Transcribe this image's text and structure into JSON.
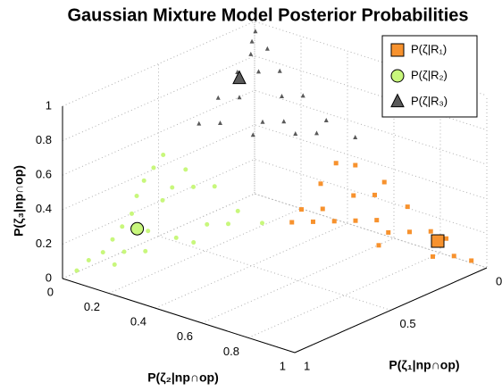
{
  "chart_data": {
    "type": "scatter3d",
    "title": "Gaussian Mixture Model Posterior Probabilities",
    "x_label": "P(ζ₁|np∩op)",
    "y_label": "P(ζ₂|np∩op)",
    "z_label": "P(ζ₃|np∩op)",
    "xlim": [
      0,
      1
    ],
    "ylim": [
      0,
      1
    ],
    "zlim": [
      0,
      1
    ],
    "xticks": [
      0,
      0.5,
      1
    ],
    "yticks": [
      0,
      0.2,
      0.4,
      0.6,
      0.8,
      1
    ],
    "zticks": [
      0,
      0.2,
      0.4,
      0.6,
      0.8,
      1
    ],
    "grid": true,
    "legend": "upper right",
    "series": [
      {
        "name": "P(ζ|R₁)",
        "color": "#f7922e",
        "marker": "square",
        "x": [
          0.02,
          0.05,
          0.1,
          0.05,
          0.1,
          0.15,
          0.05,
          0.1,
          0.2,
          0.15,
          0.25,
          0.3,
          0.05,
          0.2,
          0.3,
          0.35,
          0.08,
          0.15,
          0.03,
          0.25,
          0.12,
          0.2
        ],
        "y": [
          0.95,
          0.9,
          0.85,
          0.8,
          0.75,
          0.7,
          0.7,
          0.6,
          0.6,
          0.55,
          0.5,
          0.45,
          0.6,
          0.45,
          0.5,
          0.45,
          0.5,
          0.65,
          0.85,
          0.55,
          0.45,
          0.7
        ],
        "z": [
          0.03,
          0.05,
          0.05,
          0.15,
          0.15,
          0.15,
          0.25,
          0.3,
          0.2,
          0.3,
          0.25,
          0.25,
          0.35,
          0.35,
          0.2,
          0.2,
          0.42,
          0.2,
          0.12,
          0.2,
          0.43,
          0.1
        ],
        "highlight": {
          "x": 0.055,
          "y": 0.834,
          "z": 0.111
        }
      },
      {
        "name": "P(ζ|R₂)",
        "color": "#c8f77c",
        "marker": "circle",
        "x": [
          0.95,
          0.9,
          0.85,
          0.8,
          0.75,
          0.7,
          0.65,
          0.6,
          0.55,
          0.5,
          0.85,
          0.75,
          0.65,
          0.55,
          0.5,
          0.6,
          0.5,
          0.45,
          0.45,
          0.7,
          0.55,
          0.8,
          0.62,
          0.48,
          0.42
        ],
        "y": [
          0.02,
          0.03,
          0.05,
          0.05,
          0.05,
          0.05,
          0.03,
          0.02,
          0.02,
          0.02,
          0.1,
          0.15,
          0.2,
          0.25,
          0.3,
          0.1,
          0.15,
          0.2,
          0.3,
          0.12,
          0.1,
          0.1,
          0.25,
          0.1,
          0.38
        ],
        "z": [
          0.03,
          0.07,
          0.1,
          0.15,
          0.2,
          0.25,
          0.32,
          0.38,
          0.43,
          0.48,
          0.05,
          0.1,
          0.15,
          0.2,
          0.2,
          0.3,
          0.35,
          0.35,
          0.25,
          0.18,
          0.35,
          0.1,
          0.13,
          0.42,
          0.2
        ],
        "highlight": {
          "x": 0.72,
          "y": 0.09,
          "z": 0.19
        }
      },
      {
        "name": "P(ζ|R₃)",
        "color": "#5a5a5a",
        "marker": "triangle",
        "x": [
          0.02,
          0.05,
          0.03,
          0.08,
          0.1,
          0.05,
          0.15,
          0.1,
          0.2,
          0.05,
          0.25,
          0.15,
          0.2,
          0.05,
          0.3,
          0.1,
          0.25,
          0.02,
          0.15,
          0.35
        ],
        "y": [
          0.02,
          0.03,
          0.08,
          0.05,
          0.1,
          0.15,
          0.05,
          0.2,
          0.1,
          0.25,
          0.05,
          0.25,
          0.2,
          0.35,
          0.1,
          0.35,
          0.2,
          0.45,
          0.3,
          0.05
        ],
        "z": [
          0.96,
          0.92,
          0.89,
          0.87,
          0.8,
          0.8,
          0.8,
          0.7,
          0.7,
          0.7,
          0.7,
          0.6,
          0.6,
          0.6,
          0.6,
          0.55,
          0.55,
          0.53,
          0.55,
          0.6
        ],
        "highlight": {
          "x": 0.159,
          "y": 0.066,
          "z": 0.775
        }
      }
    ]
  }
}
